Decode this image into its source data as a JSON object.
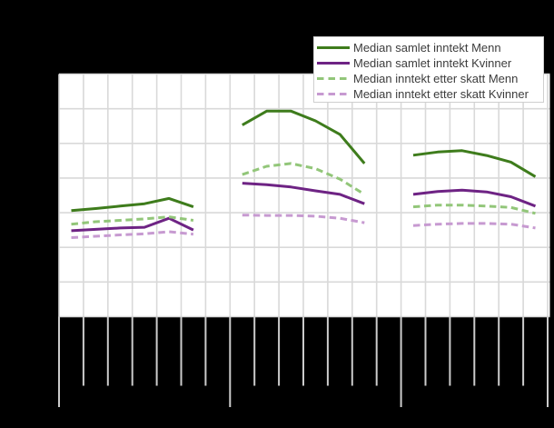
{
  "window": {
    "background_color": "#000000",
    "title_text": ""
  },
  "legend": {
    "position": "top-right",
    "items": [
      {
        "label": "Median samlet inntekt Menn",
        "color": "#3e7c1c",
        "style": "solid"
      },
      {
        "label": "Median samlet inntekt Kvinner",
        "color": "#6e2384",
        "style": "solid"
      },
      {
        "label": "Median inntekt etter skatt Menn",
        "color": "#92c679",
        "style": "dashed"
      },
      {
        "label": "Median inntekt etter skatt Kvinner",
        "color": "#c79ad1",
        "style": "dashed"
      }
    ]
  },
  "chart_data": {
    "type": "line",
    "title": "",
    "xlabel": "",
    "ylabel": "",
    "grid": true,
    "legend_position": "top-right",
    "axis_tick_labels_visible": false,
    "value_units": "y-gridline units (0 = x-axis, 1 per horizontal gridline; numeric axis labels are not visible in the image)",
    "y_range_units": [
      0,
      7
    ],
    "x_structure": {
      "group_count": 3,
      "tick_intervals_per_group": [
        7,
        7,
        6
      ],
      "points_per_group": 6,
      "long_tick_at_group_boundaries": true
    },
    "series": [
      {
        "name": "Median samlet inntekt Menn",
        "color": "#3e7c1c",
        "style": "solid",
        "groups": [
          [
            3.06,
            3.12,
            3.19,
            3.26,
            3.41,
            3.17
          ],
          [
            5.53,
            5.93,
            5.93,
            5.65,
            5.26,
            4.42
          ],
          [
            4.66,
            4.75,
            4.79,
            4.65,
            4.46,
            4.04
          ]
        ]
      },
      {
        "name": "Median samlet inntekt Kvinner",
        "color": "#6e2384",
        "style": "solid",
        "groups": [
          [
            2.48,
            2.52,
            2.56,
            2.58,
            2.84,
            2.5
          ],
          [
            3.85,
            3.81,
            3.74,
            3.63,
            3.53,
            3.26
          ],
          [
            3.53,
            3.61,
            3.65,
            3.6,
            3.46,
            3.19
          ]
        ]
      },
      {
        "name": "Median inntekt etter skatt Menn",
        "color": "#92c679",
        "style": "dashed",
        "groups": [
          [
            2.67,
            2.74,
            2.78,
            2.82,
            2.88,
            2.78
          ],
          [
            4.1,
            4.34,
            4.42,
            4.27,
            3.97,
            3.53
          ],
          [
            3.17,
            3.22,
            3.22,
            3.19,
            3.15,
            2.98
          ]
        ]
      },
      {
        "name": "Median inntekt etter skatt Kvinner",
        "color": "#c79ad1",
        "style": "dashed",
        "groups": [
          [
            2.28,
            2.32,
            2.36,
            2.39,
            2.45,
            2.38
          ],
          [
            2.93,
            2.92,
            2.92,
            2.9,
            2.84,
            2.71
          ],
          [
            2.63,
            2.67,
            2.69,
            2.69,
            2.67,
            2.56
          ]
        ]
      }
    ],
    "style_colors": {
      "plot_background": "#ffffff",
      "gridline": "#d9d9d9",
      "tick_mark": "#cccccc",
      "legend_border": "#cfcfcf",
      "legend_text": "#3c3c3c"
    }
  }
}
